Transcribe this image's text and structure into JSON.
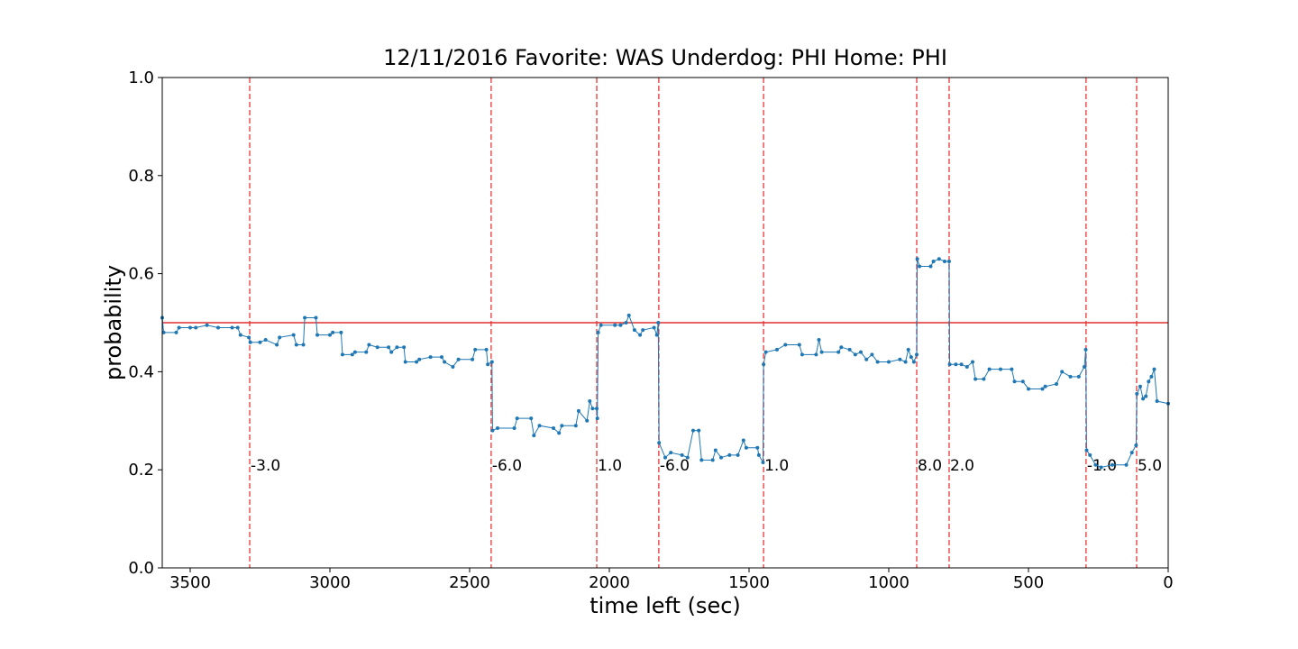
{
  "chart_data": {
    "type": "line",
    "title": "12/11/2016 Favorite: WAS Underdog: PHI Home: PHI",
    "xlabel": "time left (sec)",
    "ylabel": "probability",
    "color": "#1f77b4",
    "x": [
      3600,
      3595,
      3550,
      3540,
      3500,
      3480,
      3440,
      3400,
      3350,
      3330,
      3320,
      3290,
      3285,
      3250,
      3230,
      3190,
      3180,
      3130,
      3120,
      3095,
      3090,
      3050,
      3045,
      3000,
      2990,
      2960,
      2955,
      2920,
      2910,
      2870,
      2860,
      2830,
      2790,
      2780,
      2760,
      2735,
      2730,
      2690,
      2680,
      2640,
      2600,
      2590,
      2560,
      2540,
      2490,
      2480,
      2440,
      2435,
      2420,
      2418,
      2400,
      2340,
      2330,
      2280,
      2270,
      2250,
      2200,
      2180,
      2170,
      2120,
      2110,
      2080,
      2070,
      2060,
      2045,
      2043,
      2040,
      2030,
      1980,
      1960,
      1940,
      1930,
      1910,
      1890,
      1880,
      1840,
      1830,
      1825,
      1822,
      1800,
      1780,
      1740,
      1720,
      1700,
      1680,
      1670,
      1630,
      1620,
      1600,
      1570,
      1540,
      1520,
      1510,
      1470,
      1465,
      1450,
      1448,
      1440,
      1400,
      1370,
      1320,
      1310,
      1260,
      1250,
      1240,
      1180,
      1170,
      1140,
      1120,
      1100,
      1080,
      1060,
      1040,
      1000,
      960,
      940,
      930,
      920,
      910,
      900,
      898,
      890,
      850,
      840,
      820,
      800,
      784,
      782,
      760,
      740,
      720,
      700,
      690,
      660,
      640,
      600,
      560,
      550,
      520,
      500,
      450,
      440,
      400,
      380,
      350,
      320,
      300,
      295,
      292,
      280,
      260,
      240,
      200,
      150,
      130,
      115,
      112,
      100,
      90,
      80,
      70,
      60,
      50,
      40,
      0
    ],
    "values": [
      0.51,
      0.48,
      0.48,
      0.49,
      0.49,
      0.49,
      0.495,
      0.49,
      0.49,
      0.49,
      0.475,
      0.47,
      0.46,
      0.46,
      0.465,
      0.455,
      0.47,
      0.475,
      0.455,
      0.455,
      0.51,
      0.51,
      0.475,
      0.475,
      0.48,
      0.48,
      0.435,
      0.435,
      0.44,
      0.44,
      0.455,
      0.45,
      0.45,
      0.44,
      0.45,
      0.45,
      0.42,
      0.42,
      0.425,
      0.43,
      0.43,
      0.42,
      0.41,
      0.425,
      0.425,
      0.445,
      0.445,
      0.415,
      0.42,
      0.28,
      0.285,
      0.285,
      0.305,
      0.305,
      0.27,
      0.29,
      0.285,
      0.275,
      0.29,
      0.29,
      0.32,
      0.3,
      0.34,
      0.325,
      0.325,
      0.305,
      0.48,
      0.495,
      0.495,
      0.495,
      0.5,
      0.515,
      0.485,
      0.475,
      0.485,
      0.49,
      0.475,
      0.5,
      0.255,
      0.225,
      0.235,
      0.23,
      0.225,
      0.28,
      0.28,
      0.22,
      0.22,
      0.24,
      0.225,
      0.23,
      0.23,
      0.26,
      0.245,
      0.245,
      0.23,
      0.215,
      0.415,
      0.44,
      0.445,
      0.455,
      0.455,
      0.435,
      0.435,
      0.465,
      0.44,
      0.44,
      0.45,
      0.445,
      0.435,
      0.44,
      0.425,
      0.435,
      0.42,
      0.42,
      0.425,
      0.42,
      0.445,
      0.43,
      0.42,
      0.435,
      0.63,
      0.615,
      0.615,
      0.625,
      0.63,
      0.625,
      0.625,
      0.415,
      0.415,
      0.415,
      0.41,
      0.42,
      0.385,
      0.385,
      0.405,
      0.405,
      0.405,
      0.38,
      0.38,
      0.365,
      0.365,
      0.37,
      0.375,
      0.4,
      0.39,
      0.39,
      0.41,
      0.445,
      0.24,
      0.23,
      0.21,
      0.205,
      0.21,
      0.21,
      0.235,
      0.25,
      0.355,
      0.37,
      0.345,
      0.35,
      0.38,
      0.39,
      0.405,
      0.34,
      0.335
    ],
    "hline": 0.5,
    "hline_color": "#e03030",
    "event_color": "#f05050",
    "events": [
      {
        "x": 3287,
        "label": "-3.0"
      },
      {
        "x": 2423,
        "label": "-6.0"
      },
      {
        "x": 2045,
        "label": "1.0"
      },
      {
        "x": 1823,
        "label": "-6.0"
      },
      {
        "x": 1448,
        "label": "1.0"
      },
      {
        "x": 900,
        "label": "8.0"
      },
      {
        "x": 784,
        "label": "2.0"
      },
      {
        "x": 294,
        "label": "-1.0"
      },
      {
        "x": 113,
        "label": "5.0"
      }
    ],
    "xlim": [
      3600,
      0
    ],
    "xticks": [
      3500,
      3000,
      2500,
      2000,
      1500,
      1000,
      500,
      0
    ],
    "ylim": [
      0,
      1
    ],
    "yticks": [
      {
        "value": 0,
        "label": "0.0"
      },
      0.2,
      0.4,
      0.6,
      0.8,
      {
        "value": 1,
        "label": "1.0"
      }
    ]
  }
}
